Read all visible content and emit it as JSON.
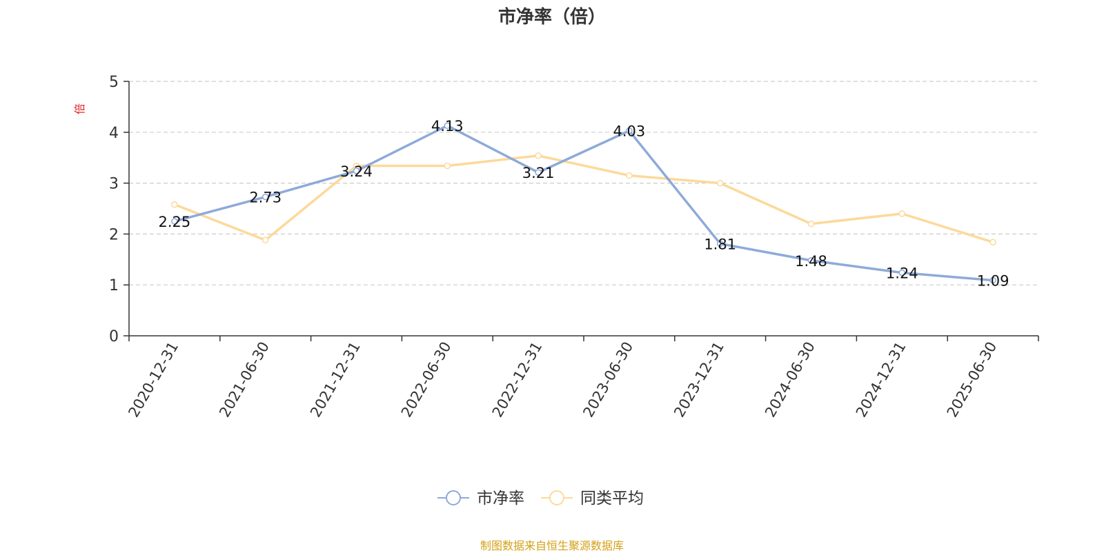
{
  "chart_data": {
    "type": "line",
    "title": "市净率（倍）",
    "ylabel": "倍",
    "xlabel": "",
    "ylim": [
      0,
      5
    ],
    "yticks": [
      0,
      1,
      2,
      3,
      4,
      5
    ],
    "grid": true,
    "legend_position": "bottom",
    "categories": [
      "2020-12-31",
      "2021-06-30",
      "2021-12-31",
      "2022-06-30",
      "2022-12-31",
      "2023-06-30",
      "2023-12-31",
      "2024-06-30",
      "2024-12-31",
      "2025-06-30"
    ],
    "series": [
      {
        "name": "市净率",
        "color": "#8eaad9",
        "values": [
          2.25,
          2.73,
          3.24,
          4.13,
          3.21,
          4.03,
          1.81,
          1.48,
          1.24,
          1.09
        ],
        "data_labels": [
          "2.25",
          "2.73",
          "3.24",
          "4.13",
          "3.21",
          "4.03",
          "1.81",
          "1.48",
          "1.24",
          "1.09"
        ]
      },
      {
        "name": "同类平均",
        "color": "#fcd99a",
        "values": [
          2.58,
          1.88,
          3.34,
          3.34,
          3.54,
          3.15,
          3.0,
          2.2,
          2.4,
          1.84
        ]
      }
    ]
  },
  "source_note": "制图数据来自恒生聚源数据库"
}
